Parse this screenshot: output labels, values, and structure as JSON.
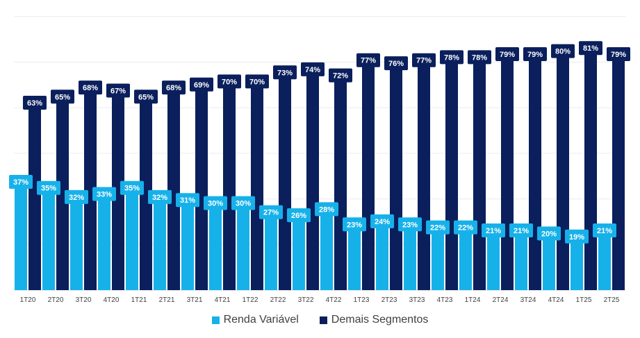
{
  "chart_data": {
    "type": "bar",
    "stacked": false,
    "grid": true,
    "legend_position": "bottom",
    "categories": [
      "1T20",
      "2T20",
      "3T20",
      "4T20",
      "1T21",
      "2T21",
      "3T21",
      "4T21",
      "1T22",
      "2T22",
      "3T22",
      "4T22",
      "1T23",
      "2T23",
      "3T23",
      "4T23",
      "1T24",
      "2T24",
      "3T24",
      "4T24",
      "1T25",
      "2T25"
    ],
    "ylim": [
      0,
      100
    ],
    "series": [
      {
        "name": "Renda Variável",
        "color": "#17B1EA",
        "values": [
          37,
          35,
          32,
          33,
          35,
          32,
          31,
          30,
          30,
          27,
          26,
          28,
          23,
          24,
          23,
          22,
          22,
          21,
          21,
          20,
          19,
          21
        ],
        "labels": [
          "37%",
          "35%",
          "32%",
          "33%",
          "35%",
          "32%",
          "31%",
          "30%",
          "30%",
          "27%",
          "26%",
          "28%",
          "23%",
          "24%",
          "23%",
          "22%",
          "22%",
          "21%",
          "21%",
          "20%",
          "19%",
          "21%"
        ]
      },
      {
        "name": "Demais Segmentos",
        "color": "#0A1F5C",
        "values": [
          63,
          65,
          68,
          67,
          65,
          68,
          69,
          70,
          70,
          73,
          74,
          72,
          77,
          76,
          77,
          78,
          78,
          79,
          79,
          80,
          81,
          79
        ],
        "labels": [
          "63%",
          "65%",
          "68%",
          "67%",
          "65%",
          "68%",
          "69%",
          "70%",
          "70%",
          "73%",
          "74%",
          "72%",
          "77%",
          "76%",
          "77%",
          "78%",
          "78%",
          "79%",
          "79%",
          "80%",
          "81%",
          "79%"
        ]
      }
    ]
  },
  "legend": {
    "items": [
      {
        "label": "Renda Variável",
        "color": "#17B1EA"
      },
      {
        "label": "Demais Segmentos",
        "color": "#0A1F5C"
      }
    ]
  }
}
